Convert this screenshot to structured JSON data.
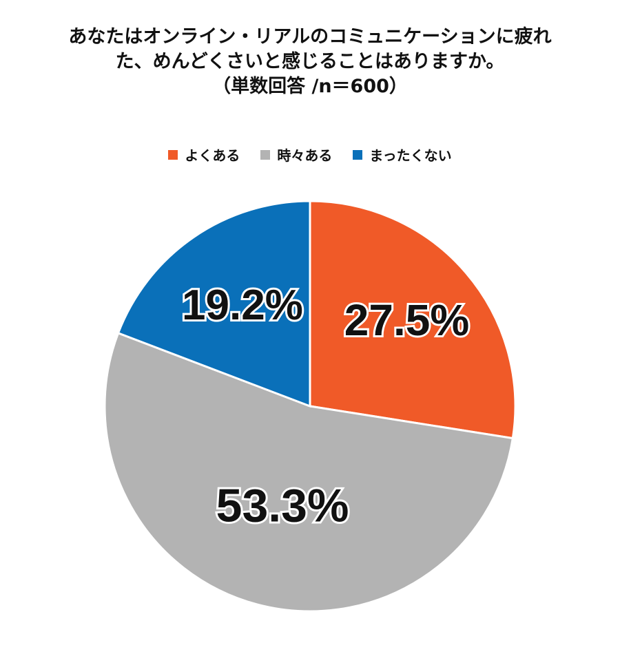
{
  "chart_data": {
    "type": "pie",
    "title_lines": [
      "あなたはオンライン・リアルのコミュニケーションに疲れ",
      "た、めんどくさいと感じることはありますか。",
      "（単数回答 /n＝600）"
    ],
    "slices": [
      {
        "label": "よくある",
        "value": 27.5,
        "value_label": "27.5%",
        "color": "#f05a28"
      },
      {
        "label": "時々ある",
        "value": 53.3,
        "value_label": "53.3%",
        "color": "#b3b3b3"
      },
      {
        "label": "まったくない",
        "value": 19.2,
        "value_label": "19.2%",
        "color": "#0a70b9"
      }
    ],
    "legend_position": "top"
  }
}
